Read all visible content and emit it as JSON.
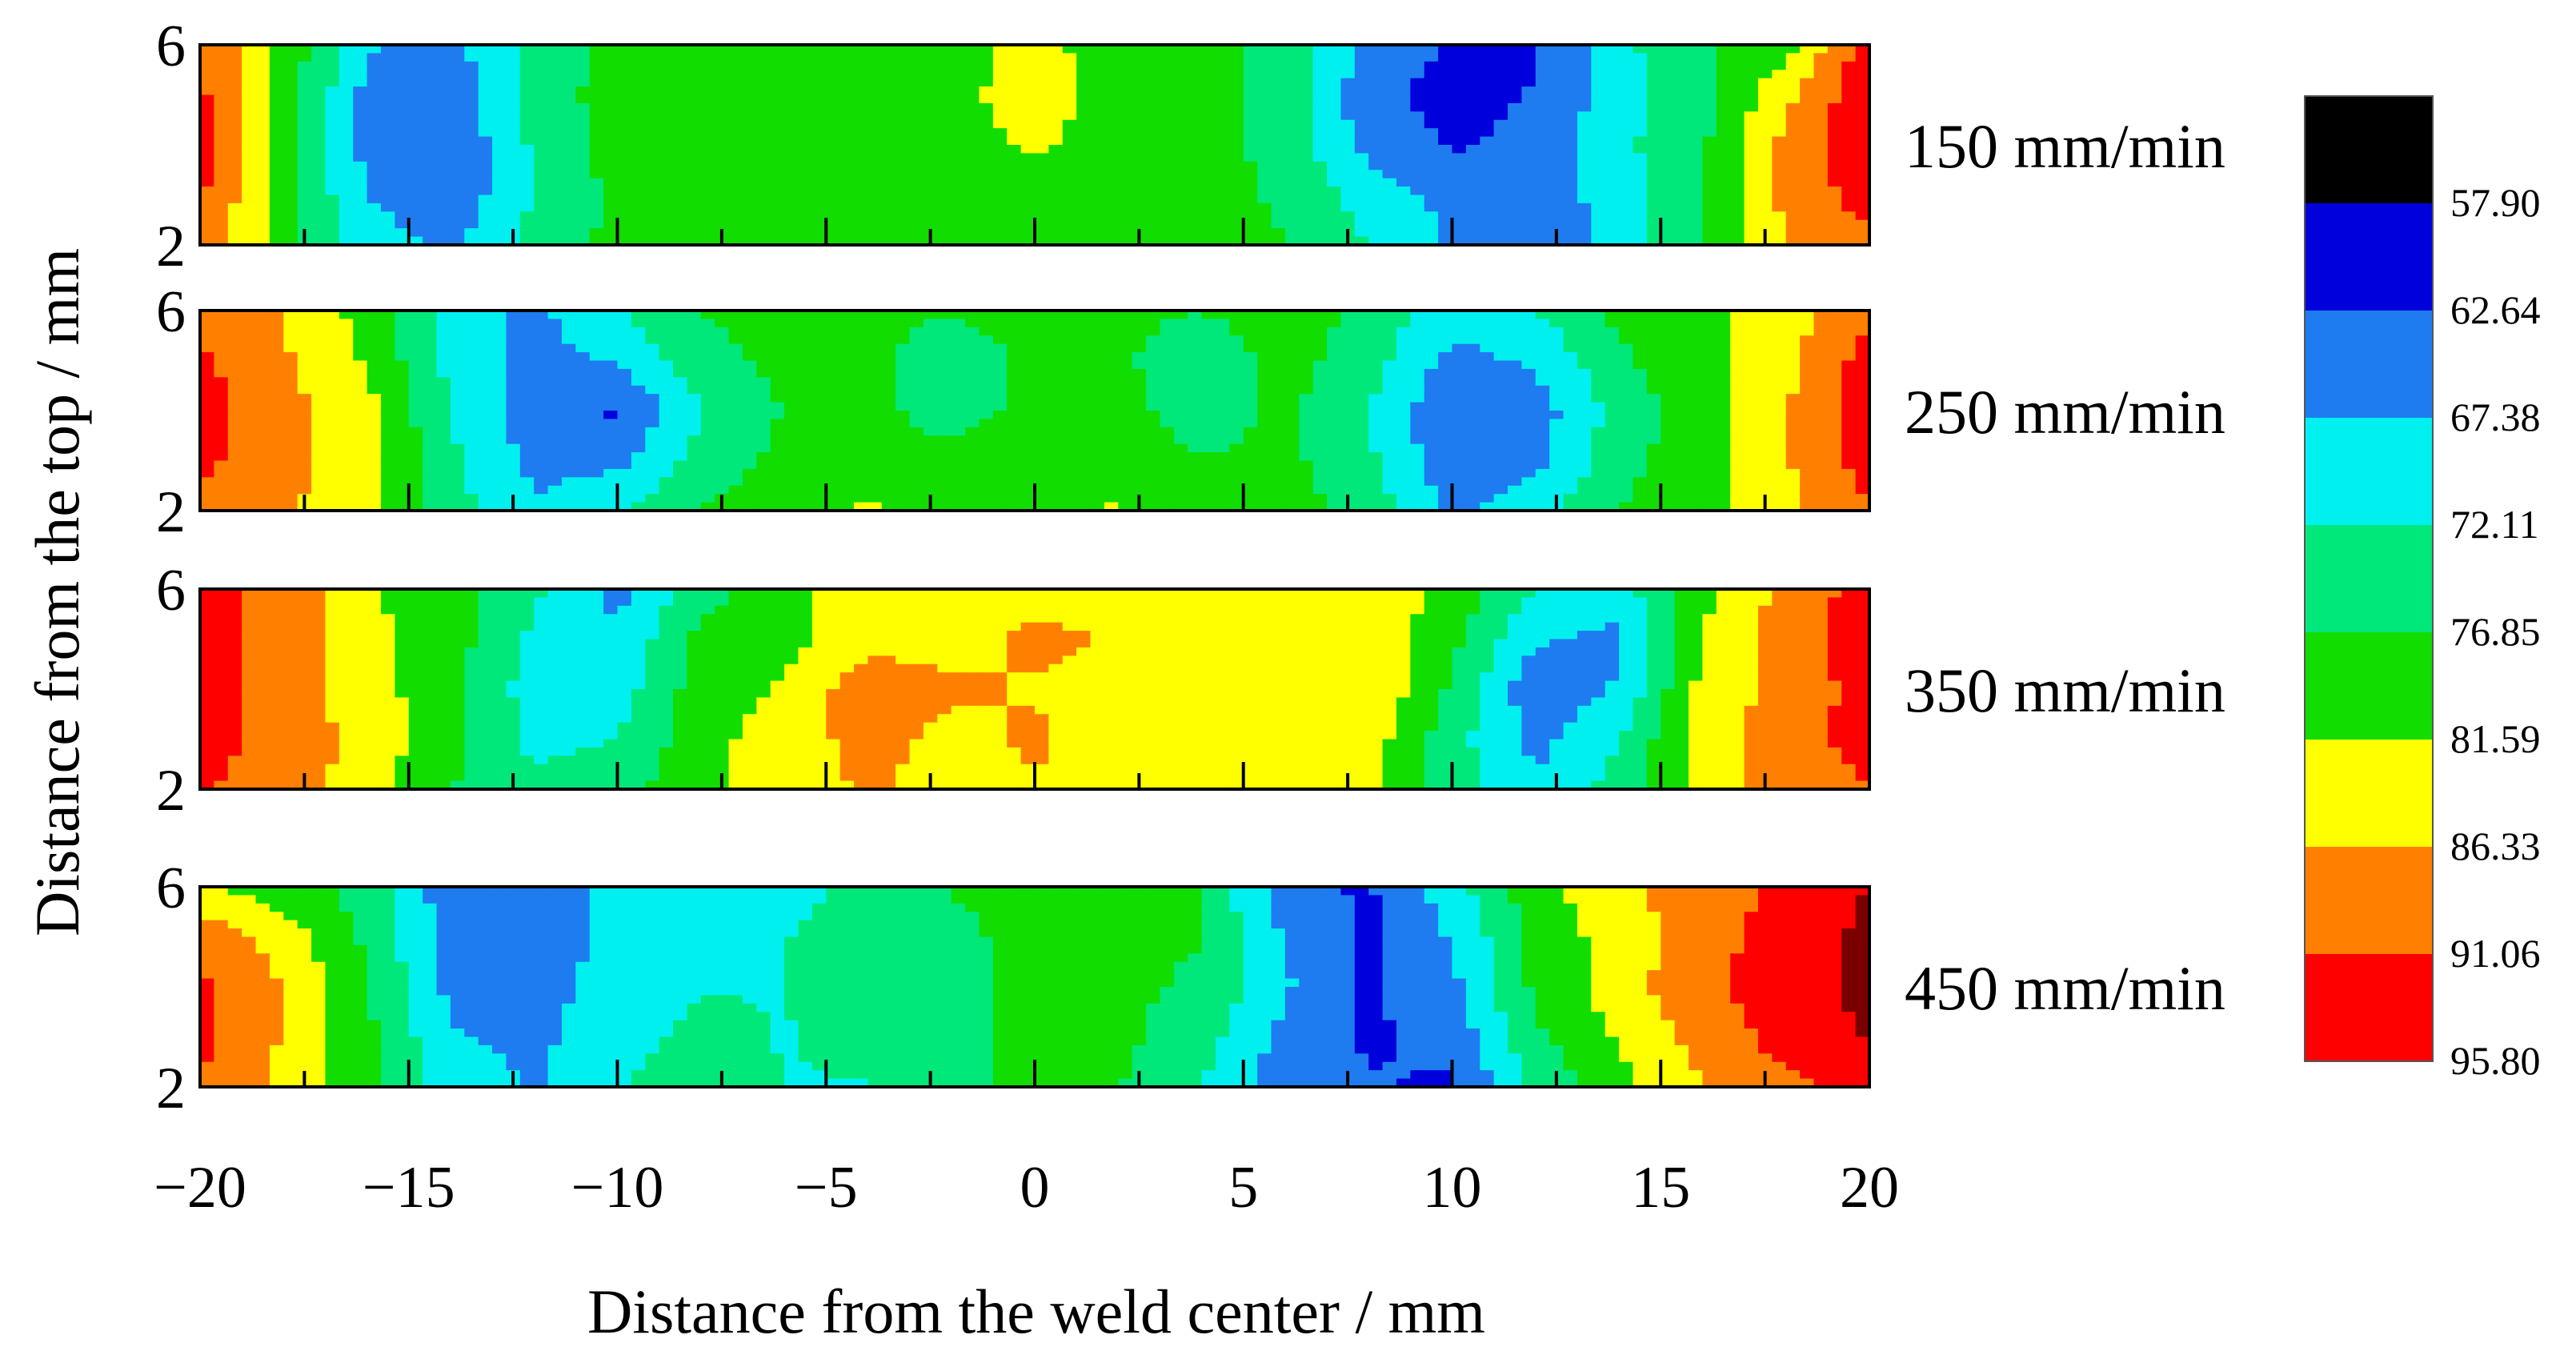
{
  "chart_data": {
    "type": "heatmap",
    "xlabel": "Distance from the weld center / mm",
    "ylabel": "Distance from the top / mm",
    "xlim": [
      -20,
      20
    ],
    "ylim": [
      2,
      6
    ],
    "xticks": [
      -20,
      -15,
      -10,
      -5,
      0,
      5,
      10,
      15,
      20
    ],
    "yticks": [
      2,
      6
    ],
    "ytick_labels": [
      "2",
      "6"
    ],
    "xtick_labels": [
      "−20",
      "−15",
      "−10",
      "−5",
      "0",
      "5",
      "10",
      "15",
      "20"
    ],
    "x": [
      -20,
      -18,
      -16,
      -14,
      -12,
      -10,
      -8,
      -6,
      -4,
      -2,
      0,
      2,
      4,
      6,
      8,
      10,
      12,
      14,
      16,
      18,
      20
    ],
    "y": [
      6,
      5,
      4,
      3,
      2
    ],
    "legend": {
      "levels": [
        "57.90",
        "62.64",
        "67.38",
        "72.11",
        "76.85",
        "81.59",
        "86.33",
        "91.06",
        "95.80"
      ],
      "colors": [
        "#000000",
        "#0000dd",
        "#1e7cf0",
        "#00f0f0",
        "#00e87a",
        "#11dd00",
        "#ffff00",
        "#ff8000",
        "#ff0000"
      ]
    },
    "series": [
      {
        "name": "150 mm/min",
        "values": [
          [
            92,
            80,
            68,
            66,
            74,
            78,
            79,
            78,
            78,
            79,
            84,
            78,
            78,
            76,
            66,
            62,
            62,
            71,
            76,
            80,
            94
          ],
          [
            92,
            80,
            66,
            64,
            74,
            79,
            80,
            79,
            78,
            80,
            84,
            79,
            79,
            75,
            64,
            61,
            63,
            70,
            75,
            85,
            95
          ],
          [
            93,
            80,
            66,
            63,
            73,
            79,
            80,
            79,
            79,
            80,
            82,
            80,
            79,
            75,
            66,
            62,
            64,
            71,
            76,
            88,
            95
          ],
          [
            92,
            79,
            67,
            64,
            72,
            78,
            80,
            80,
            79,
            80,
            80,
            80,
            79,
            76,
            70,
            66,
            64,
            70,
            76,
            88,
            93
          ],
          [
            90,
            79,
            70,
            66,
            74,
            78,
            80,
            80,
            79,
            79,
            80,
            79,
            78,
            77,
            72,
            67,
            63,
            69,
            77,
            86,
            90
          ]
        ]
      },
      {
        "name": "250 mm/min",
        "values": [
          [
            89,
            86,
            80,
            70,
            66,
            72,
            77,
            79,
            78,
            77,
            79,
            78,
            77,
            79,
            76,
            69,
            72,
            78,
            80,
            84,
            90
          ],
          [
            92,
            87,
            81,
            71,
            66,
            68,
            75,
            78,
            78,
            74,
            78,
            78,
            73,
            79,
            74,
            66,
            68,
            76,
            80,
            85,
            93
          ],
          [
            93,
            88,
            83,
            72,
            65,
            62,
            72,
            77,
            78,
            75,
            78,
            79,
            74,
            78,
            72,
            63,
            65,
            74,
            80,
            86,
            94
          ],
          [
            92,
            88,
            84,
            73,
            66,
            66,
            74,
            78,
            79,
            78,
            80,
            80,
            77,
            78,
            73,
            64,
            66,
            75,
            80,
            86,
            93
          ],
          [
            90,
            87,
            83,
            74,
            68,
            72,
            77,
            80,
            82,
            80,
            80,
            82,
            79,
            79,
            75,
            66,
            70,
            77,
            80,
            85,
            91
          ]
        ]
      },
      {
        "name": "350 mm/min",
        "values": [
          [
            92,
            90,
            82,
            79,
            73,
            66,
            75,
            80,
            84,
            83,
            85,
            86,
            84,
            83,
            86,
            80,
            72,
            70,
            80,
            88,
            93
          ],
          [
            93,
            89,
            83,
            79,
            71,
            68,
            78,
            80,
            84,
            85,
            87,
            86,
            84,
            84,
            85,
            78,
            68,
            66,
            82,
            89,
            94
          ],
          [
            94,
            88,
            84,
            78,
            70,
            70,
            79,
            82,
            90,
            87,
            86,
            85,
            86,
            84,
            86,
            76,
            64,
            68,
            83,
            88,
            93
          ],
          [
            93,
            89,
            85,
            78,
            71,
            72,
            80,
            84,
            88,
            85,
            87,
            84,
            85,
            86,
            84,
            74,
            66,
            72,
            84,
            89,
            93
          ],
          [
            91,
            90,
            83,
            77,
            73,
            75,
            80,
            84,
            87,
            84,
            86,
            84,
            86,
            85,
            83,
            74,
            68,
            74,
            84,
            88,
            91
          ]
        ]
      },
      {
        "name": "450 mm/min",
        "values": [
          [
            82,
            79,
            75,
            64,
            63,
            70,
            72,
            70,
            74,
            77,
            78,
            78,
            77,
            64,
            62,
            70,
            80,
            85,
            89,
            92,
            96
          ],
          [
            90,
            84,
            76,
            66,
            64,
            69,
            72,
            72,
            74,
            76,
            78,
            78,
            77,
            67,
            62,
            68,
            78,
            84,
            89,
            93,
            97
          ],
          [
            92,
            86,
            77,
            66,
            65,
            70,
            72,
            72,
            74,
            76,
            78,
            78,
            76,
            68,
            62,
            66,
            78,
            84,
            90,
            94,
            97
          ],
          [
            92,
            86,
            78,
            68,
            66,
            71,
            73,
            72,
            73,
            76,
            78,
            78,
            74,
            66,
            62,
            64,
            76,
            82,
            88,
            93,
            96
          ],
          [
            91,
            85,
            78,
            70,
            67,
            72,
            74,
            72,
            72,
            76,
            78,
            77,
            72,
            64,
            63,
            62,
            73,
            80,
            86,
            90,
            92
          ]
        ]
      }
    ]
  }
}
